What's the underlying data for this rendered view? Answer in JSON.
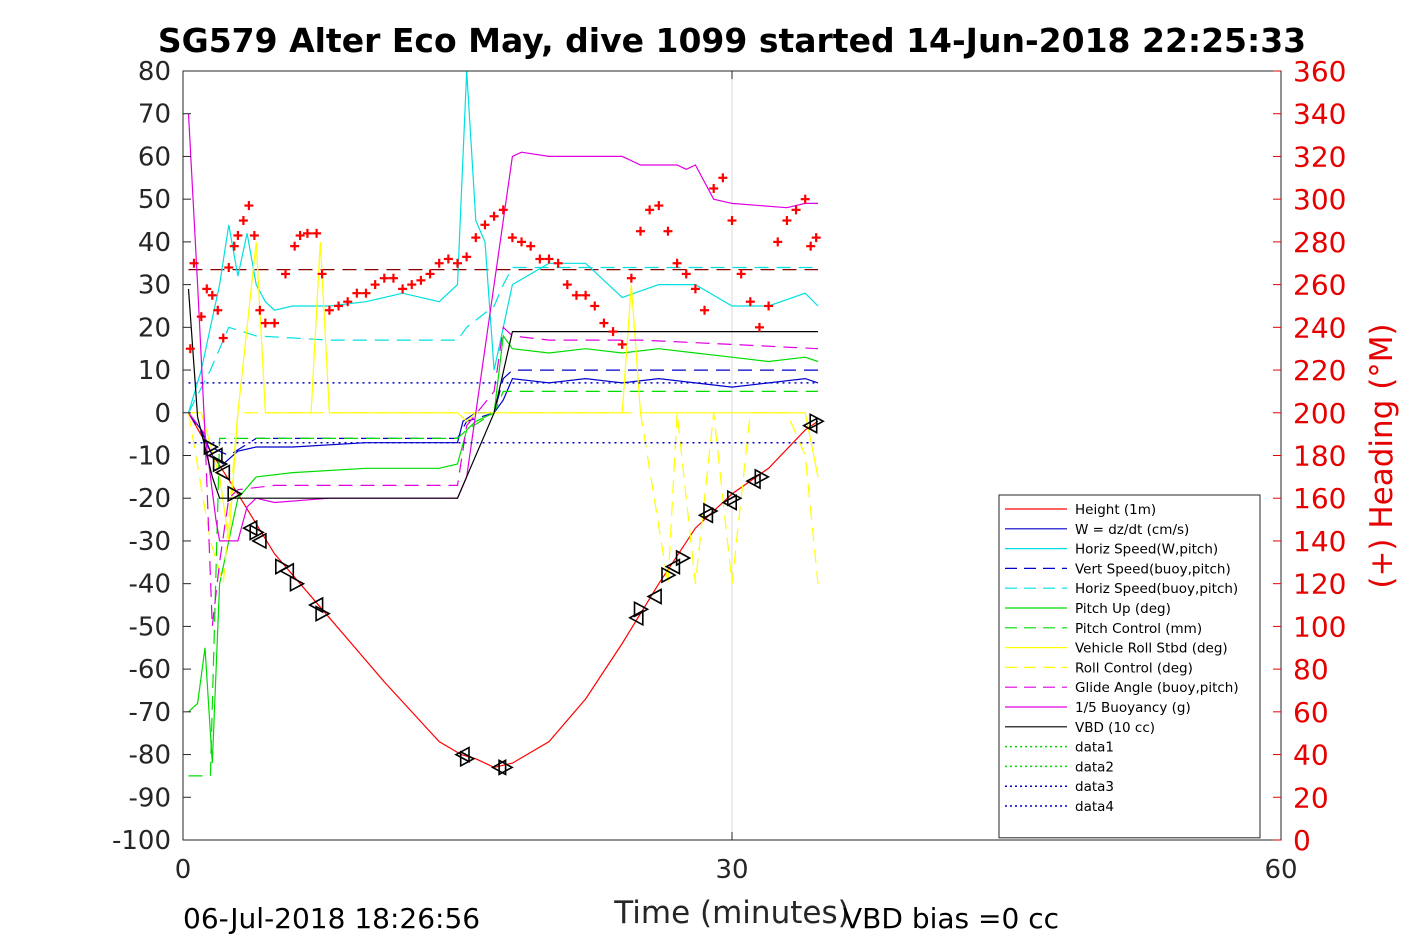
{
  "footer": {
    "timestamp": "06-Jul-2018 18:26:56",
    "vbd_bias": "VBD bias =0 cc"
  },
  "chart_data": {
    "type": "line",
    "title": "SG579 Alter Eco May, dive 1099 started 14-Jun-2018 22:25:33",
    "xlabel": "Time (minutes)",
    "ylabel": "",
    "ylabel_right": "(+) Heading (°M)",
    "xlim": [
      0,
      60
    ],
    "ylim": [
      -100,
      80
    ],
    "ylim_right": [
      0,
      360
    ],
    "x_ticks": [
      0,
      30,
      60
    ],
    "y_ticks": [
      -100,
      -90,
      -80,
      -70,
      -60,
      -50,
      -40,
      -30,
      -20,
      -10,
      0,
      10,
      20,
      30,
      40,
      50,
      60,
      70,
      80
    ],
    "y_ticks_right": [
      0,
      20,
      40,
      60,
      80,
      100,
      120,
      140,
      160,
      180,
      200,
      220,
      240,
      260,
      280,
      300,
      320,
      340,
      360
    ],
    "grid": "x=30 only",
    "legend_position": "bottom-right",
    "series": [
      {
        "name": "Height (1m)",
        "color": "#ff0000",
        "style": "solid",
        "x": [
          0.3,
          1.5,
          3,
          5,
          8,
          11,
          14,
          15.2,
          16,
          17,
          18,
          20,
          22,
          24,
          26,
          28,
          30,
          32,
          34,
          34.7
        ],
        "y": [
          0,
          -9,
          -19,
          -33,
          -48,
          -63,
          -77,
          -80,
          -81,
          -83,
          -82,
          -77,
          -67,
          -54,
          -40,
          -27,
          -19,
          -13,
          -4,
          -2
        ]
      },
      {
        "name": "W = dz/dt (cm/s)",
        "color": "#0000cc",
        "style": "solid",
        "x": [
          0.3,
          1,
          1.6,
          2.2,
          3,
          4,
          6,
          10,
          14,
          15,
          15.3,
          16,
          17,
          17.5,
          18,
          20,
          22,
          24,
          26,
          28,
          30,
          32,
          34,
          34.7
        ],
        "y": [
          0,
          -4,
          -10,
          -12,
          -9,
          -8,
          -8,
          -7,
          -7,
          -7,
          -2,
          0,
          0,
          3,
          8,
          7,
          8,
          7,
          8,
          7,
          6,
          7,
          8,
          7
        ]
      },
      {
        "name": "Horiz Speed(W,pitch)",
        "color": "#00e0e0",
        "style": "solid",
        "x": [
          0.3,
          1,
          1.5,
          2,
          2.5,
          3,
          3.5,
          4,
          4.5,
          5,
          6,
          8,
          10,
          12,
          14,
          15,
          15.3,
          15.5,
          16,
          16.5,
          17,
          17.5,
          18,
          20,
          22,
          24,
          26,
          28,
          30,
          32,
          34,
          34.7
        ],
        "y": [
          0,
          10,
          20,
          30,
          44,
          32,
          42,
          30,
          26,
          24,
          25,
          25,
          26,
          28,
          26,
          30,
          60,
          80,
          45,
          40,
          10,
          20,
          30,
          35,
          35,
          27,
          30,
          30,
          25,
          25,
          28,
          25
        ]
      },
      {
        "name": "Vert Speed(buoy,pitch)",
        "color": "#0000cc",
        "style": "dash",
        "x": [
          0.3,
          1.5,
          2.5,
          4,
          8,
          12,
          15,
          15.5,
          17,
          17.5,
          18,
          20,
          25,
          30,
          34.7
        ],
        "y": [
          0,
          -8,
          -10,
          -6,
          -6,
          -6,
          -6,
          -2,
          0,
          8,
          10,
          10,
          10,
          10,
          10
        ]
      },
      {
        "name": "Horiz Speed(buoy,pitch)",
        "color": "#00e0e0",
        "style": "dash",
        "x": [
          0.3,
          1.5,
          2.5,
          4,
          8,
          12,
          15,
          15.5,
          17,
          17.5,
          18,
          20,
          25,
          30,
          34.7
        ],
        "y": [
          0,
          10,
          20,
          18,
          17,
          17,
          17,
          20,
          25,
          30,
          34,
          34,
          34,
          34,
          34
        ]
      },
      {
        "name": "Pitch Up (deg)",
        "color": "#00dd00",
        "style": "solid",
        "x": [
          0.3,
          0.8,
          1.2,
          1.6,
          2,
          3,
          4,
          6,
          10,
          14,
          15,
          15.5,
          16,
          17,
          17.5,
          18,
          20,
          22,
          24,
          26,
          28,
          30,
          32,
          34,
          34.7
        ],
        "y": [
          -70,
          -68,
          -55,
          -82,
          -40,
          -20,
          -15,
          -14,
          -13,
          -13,
          -12,
          -4,
          -2,
          0,
          18,
          15,
          14,
          15,
          14,
          15,
          14,
          13,
          12,
          13,
          12
        ]
      },
      {
        "name": "Pitch Control (mm)",
        "color": "#00dd00",
        "style": "dash",
        "x": [
          0.3,
          1.5,
          2,
          2.5,
          5,
          10,
          15,
          15.5,
          17,
          17.5,
          18,
          25,
          34.7
        ],
        "y": [
          -85,
          -85,
          -6,
          -6,
          -6,
          -6,
          -6,
          -4,
          0,
          5,
          5,
          5,
          5
        ]
      },
      {
        "name": "Vehicle Roll Stbd (deg)",
        "color": "#ffff00",
        "style": "solid",
        "x": [
          0.3,
          1,
          2,
          2.5,
          3,
          4,
          4.5,
          5,
          7,
          7.5,
          8,
          8.5,
          10,
          15,
          15.5,
          16,
          18,
          20,
          24,
          24.5,
          25,
          25.5,
          26,
          27,
          28,
          29,
          30,
          31,
          32,
          33,
          34,
          34.7
        ],
        "y": [
          0,
          0,
          -15,
          -30,
          0,
          40,
          0,
          0,
          0,
          40,
          0,
          0,
          0,
          0,
          -2,
          0,
          0,
          0,
          0,
          30,
          0,
          0,
          0,
          0,
          0,
          0,
          0,
          0,
          0,
          0,
          0,
          -15
        ]
      },
      {
        "name": "Roll Control (deg)",
        "color": "#ffff00",
        "style": "dash",
        "x": [
          0.3,
          1.5,
          2.2,
          3,
          4,
          6,
          10,
          15,
          20,
          25,
          26.5,
          27,
          28,
          29,
          30,
          31,
          33,
          34,
          34.7
        ],
        "y": [
          0,
          -30,
          -40,
          0,
          0,
          0,
          0,
          0,
          0,
          0,
          -40,
          0,
          -40,
          0,
          -40,
          0,
          0,
          -10,
          -40
        ]
      },
      {
        "name": "Glide Angle (buoy,pitch)",
        "color": "#e000e0",
        "style": "dash",
        "x": [
          0.3,
          1.2,
          1.6,
          2,
          2.5,
          3,
          5,
          10,
          15,
          15.5,
          17,
          17.5,
          18,
          20,
          25,
          30,
          34.7
        ],
        "y": [
          0,
          -5,
          -50,
          -35,
          -20,
          -18,
          -17,
          -17,
          -17,
          -3,
          5,
          20,
          18,
          17,
          17,
          16,
          15
        ]
      },
      {
        "name": "1/5 Buoyancy (g)",
        "color": "#e000e0",
        "style": "solid",
        "x": [
          0.3,
          0.8,
          1.2,
          1.8,
          2,
          2.5,
          3,
          3.5,
          4,
          5,
          8,
          12,
          15,
          15.5,
          16,
          17,
          18,
          18.5,
          20,
          24,
          25,
          27,
          27.5,
          28,
          29,
          30,
          33,
          34,
          34.7
        ],
        "y": [
          70,
          30,
          -5,
          -25,
          -30,
          -30,
          -30,
          -22,
          -20,
          -21,
          -20,
          -20,
          -20,
          -15,
          0,
          30,
          60,
          61,
          60,
          60,
          58,
          58,
          57,
          58,
          50,
          49,
          48,
          49,
          49
        ]
      },
      {
        "name": "VBD (10 cc)",
        "color": "#000000",
        "style": "solid",
        "x": [
          0.3,
          0.8,
          1.6,
          2,
          5,
          10,
          15,
          17,
          18,
          20,
          25,
          30,
          34.7
        ],
        "y": [
          29,
          -1,
          -15,
          -20,
          -20,
          -20,
          -20,
          0,
          19,
          19,
          19,
          19,
          19
        ]
      },
      {
        "name": "data1",
        "color": "#00dd00",
        "style": "dotted",
        "x": [],
        "y": []
      },
      {
        "name": "data2",
        "color": "#00dd00",
        "style": "dotted",
        "x": [],
        "y": []
      },
      {
        "name": "data3",
        "color": "#0000cc",
        "style": "dotted",
        "x": [
          0.3,
          34.7
        ],
        "y": [
          7,
          7
        ]
      },
      {
        "name": "data4",
        "color": "#0000cc",
        "style": "dotted",
        "x": [
          0.3,
          34.7
        ],
        "y": [
          -7,
          -7
        ]
      }
    ],
    "reference_line": {
      "color": "#8b0000",
      "style": "dash",
      "y_right": 267,
      "x": [
        0.3,
        34.7
      ]
    },
    "heading_points": {
      "color": "#ff0000",
      "axis": "right",
      "x": [
        0.4,
        0.6,
        1.0,
        1.3,
        1.6,
        1.9,
        2.2,
        2.5,
        2.8,
        3.0,
        3.3,
        3.6,
        3.9,
        4.2,
        4.5,
        5.0,
        5.6,
        6.1,
        6.4,
        6.8,
        7.3,
        7.6,
        8.0,
        8.5,
        9.0,
        9.5,
        10.0,
        10.5,
        11.0,
        11.5,
        12.0,
        12.5,
        13.0,
        13.5,
        14.0,
        14.5,
        15.0,
        15.5,
        16.0,
        16.5,
        17.0,
        17.5,
        18.0,
        18.5,
        19.0,
        19.5,
        20.0,
        20.5,
        21.0,
        21.5,
        22.0,
        22.5,
        23.0,
        23.5,
        24.0,
        24.5,
        25.0,
        25.5,
        26.0,
        26.5,
        27.0,
        27.5,
        28.0,
        28.5,
        29.0,
        29.5,
        30.0,
        30.5,
        31.0,
        31.5,
        32.0,
        32.5,
        33.0,
        33.5,
        34.0,
        34.3,
        34.6
      ],
      "y": [
        230,
        270,
        245,
        258,
        255,
        248,
        235,
        268,
        278,
        283,
        290,
        297,
        283,
        248,
        242,
        242,
        265,
        278,
        283,
        284,
        284,
        265,
        248,
        250,
        252,
        256,
        256,
        260,
        263,
        263,
        258,
        260,
        262,
        265,
        270,
        272,
        270,
        273,
        282,
        288,
        292,
        295,
        282,
        280,
        278,
        272,
        272,
        270,
        260,
        255,
        255,
        250,
        242,
        238,
        232,
        263,
        285,
        295,
        297,
        285,
        270,
        265,
        258,
        248,
        305,
        310,
        290,
        265,
        252,
        240,
        250,
        280,
        290,
        295,
        300,
        278,
        282
      ]
    },
    "triangle_markers": {
      "color": "#000000",
      "x": [
        1.5,
        1.8,
        2.0,
        2.2,
        2.8,
        3.7,
        4.0,
        4.2,
        5.4,
        5.7,
        6.2,
        7.3,
        7.6,
        15.3,
        15.5,
        17.3,
        17.6,
        24.8,
        25.0,
        25.8,
        26.5,
        26.8,
        27.3,
        28.6,
        28.8,
        29.9,
        30.1,
        31.2,
        31.6,
        34.3,
        34.6
      ],
      "y": [
        -8,
        -10,
        -12,
        -14,
        -19,
        -27,
        -28,
        -30,
        -36,
        -37,
        -40,
        -45,
        -47,
        -80,
        -81,
        -83,
        -83,
        -48,
        -46,
        -43,
        -38,
        -36,
        -34,
        -24,
        -23,
        -21,
        -20,
        -16,
        -15,
        -3,
        -2
      ]
    }
  }
}
